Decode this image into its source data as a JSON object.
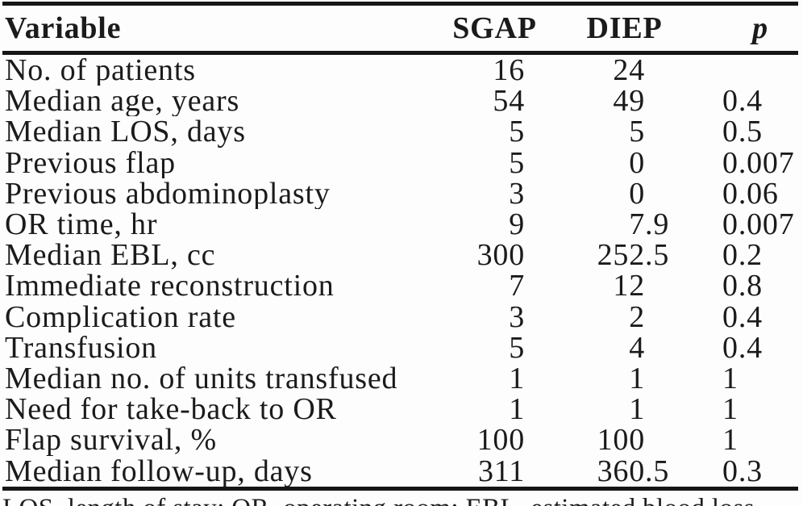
{
  "table": {
    "headers": {
      "variable": "Variable",
      "sgap": "SGAP",
      "diep": "DIEP",
      "p": "p"
    },
    "rows": [
      {
        "variable": "No. of patients",
        "sgap": "16",
        "diep": "24",
        "p": ""
      },
      {
        "variable": "Median age, years",
        "sgap": "54",
        "diep": "49",
        "p": "0.4"
      },
      {
        "variable": "Median LOS, days",
        "sgap": "5",
        "diep": "5",
        "p": "0.5"
      },
      {
        "variable": "Previous flap",
        "sgap": "5",
        "diep": "0",
        "p": "0.007"
      },
      {
        "variable": "Previous abdominoplasty",
        "sgap": "3",
        "diep": "0",
        "p": "0.06"
      },
      {
        "variable": "OR time, hr",
        "sgap": "9",
        "diep": "7.9",
        "p": "0.007"
      },
      {
        "variable": "Median EBL, cc",
        "sgap": "300",
        "diep": "252.5",
        "p": "0.2"
      },
      {
        "variable": "Immediate reconstruction",
        "sgap": "7",
        "diep": "12",
        "p": "0.8"
      },
      {
        "variable": "Complication rate",
        "sgap": "3",
        "diep": "2",
        "p": "0.4"
      },
      {
        "variable": "Transfusion",
        "sgap": "5",
        "diep": "4",
        "p": "0.4"
      },
      {
        "variable": "Median no. of units transfused",
        "sgap": "1",
        "diep": "1",
        "p": "1"
      },
      {
        "variable": "Need for take-back to OR",
        "sgap": "1",
        "diep": "1",
        "p": "1"
      },
      {
        "variable": "Flap survival, %",
        "sgap": "100",
        "diep": "100",
        "p": "1"
      },
      {
        "variable": "Median follow-up, days",
        "sgap": "311",
        "diep": "360.5",
        "p": "0.3"
      }
    ],
    "footnote": "LOS, length of stay; OR, operating room; EBL, estimated blood loss."
  },
  "colors": {
    "text": "#1b1b1b",
    "rule": "#161616",
    "background": "#fdfdfd"
  }
}
